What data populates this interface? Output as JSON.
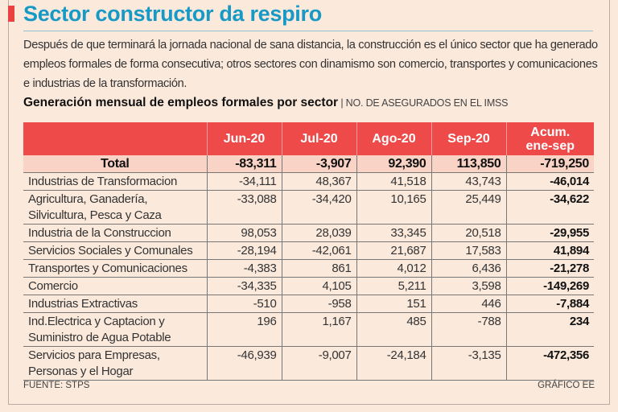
{
  "title": "Sector constructor da respiro",
  "lead": "Después de que terminará la jornada nacional de sana distancia, la construcción es el único sector que ha generado empleos formales de forma consecutiva; otros sectores con dinamismo son comercio, transportes y comunicaciones e industrias de la transformación.",
  "subtitle": {
    "main": "Generación mensual de empleos formales por sector",
    "unit": " | NO. DE ASEGURADOS EN EL IMSS"
  },
  "table": {
    "headers": [
      "",
      "Jun-20",
      "Jul-20",
      "Ago-20",
      "Sep-20",
      "Acum. ene-sep"
    ],
    "total": [
      "Total",
      "-83,311",
      "-3,907",
      "92,390",
      "113,850",
      "-719,250"
    ],
    "rows": [
      [
        "Industrias de  Transformacion",
        "-34,111",
        "48,367",
        "41,518",
        "43,743",
        "-46,014"
      ],
      [
        "Agricultura, Ganadería, Silvicultura, Pesca y Caza",
        "-33,088",
        "-34,420",
        "10,165",
        "25,449",
        "-34,622"
      ],
      [
        "Industria de  la Construccion",
        "98,053",
        "28,039",
        "33,345",
        "20,518",
        "-29,955"
      ],
      [
        "Servicios Sociales y Comunales",
        "-28,194",
        "-42,061",
        "21,687",
        "17,583",
        "41,894"
      ],
      [
        "Transportes y Comunicaciones",
        "-4,383",
        "861",
        "4,012",
        "6,436",
        "-21,278"
      ],
      [
        "Comercio",
        "-34,335",
        "4,105",
        "5,211",
        "3,598",
        "-149,269"
      ],
      [
        "Industrias Extractivas",
        "-510",
        "-958",
        "151",
        "446",
        "-7,884"
      ],
      [
        "Ind.Electrica y Captacion y Suministro de  Agua Potable",
        "196",
        "1,167",
        "485",
        "-788",
        "234"
      ],
      [
        "Servicios para Empresas, Personas y el Hogar",
        "-46,939",
        "-9,007",
        "-24,184",
        "-3,135",
        "-472,356"
      ]
    ]
  },
  "footer": {
    "source": "FUENTE: STPS",
    "credit": "GRÁFICO EE"
  },
  "colors": {
    "accent": "#ee4a4a",
    "title": "#1799c6",
    "background": "#fbe9dc",
    "total_row": "#f9d3c5"
  }
}
